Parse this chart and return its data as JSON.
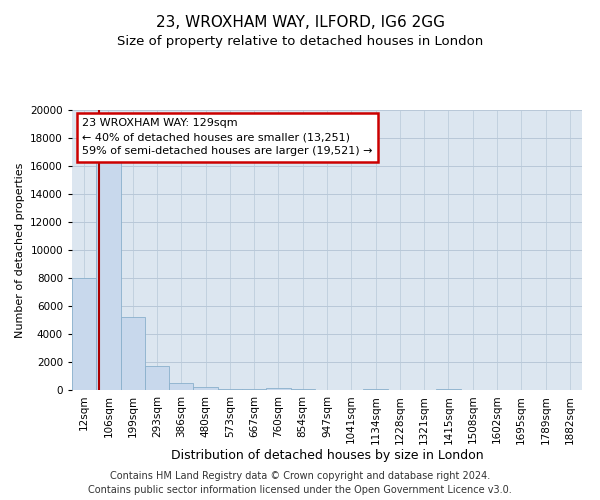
{
  "title1": "23, WROXHAM WAY, ILFORD, IG6 2GG",
  "title2": "Size of property relative to detached houses in London",
  "xlabel": "Distribution of detached houses by size in London",
  "ylabel": "Number of detached properties",
  "bar_color": "#c8d8ec",
  "bar_edge_color": "#8ab0cc",
  "background_color": "#dce6f0",
  "grid_color": "#b8c8d8",
  "vline_color": "#aa0000",
  "annotation_box_color": "#cc0000",
  "categories": [
    "12sqm",
    "106sqm",
    "199sqm",
    "293sqm",
    "386sqm",
    "480sqm",
    "573sqm",
    "667sqm",
    "760sqm",
    "854sqm",
    "947sqm",
    "1041sqm",
    "1134sqm",
    "1228sqm",
    "1321sqm",
    "1415sqm",
    "1508sqm",
    "1602sqm",
    "1695sqm",
    "1789sqm",
    "1882sqm"
  ],
  "bar_heights": [
    8000,
    16500,
    5200,
    1750,
    500,
    200,
    100,
    50,
    150,
    50,
    0,
    0,
    50,
    0,
    0,
    50,
    0,
    0,
    0,
    0,
    0
  ],
  "vline_x": 0.63,
  "annotation_text": "23 WROXHAM WAY: 129sqm\n← 40% of detached houses are smaller (13,251)\n59% of semi-detached houses are larger (19,521) →",
  "ylim": [
    0,
    20000
  ],
  "yticks": [
    0,
    2000,
    4000,
    6000,
    8000,
    10000,
    12000,
    14000,
    16000,
    18000,
    20000
  ],
  "footnote": "Contains HM Land Registry data © Crown copyright and database right 2024.\nContains public sector information licensed under the Open Government Licence v3.0.",
  "title1_fontsize": 11,
  "title2_fontsize": 9.5,
  "xlabel_fontsize": 9,
  "ylabel_fontsize": 8,
  "tick_fontsize": 7.5,
  "annot_fontsize": 8,
  "footnote_fontsize": 7
}
